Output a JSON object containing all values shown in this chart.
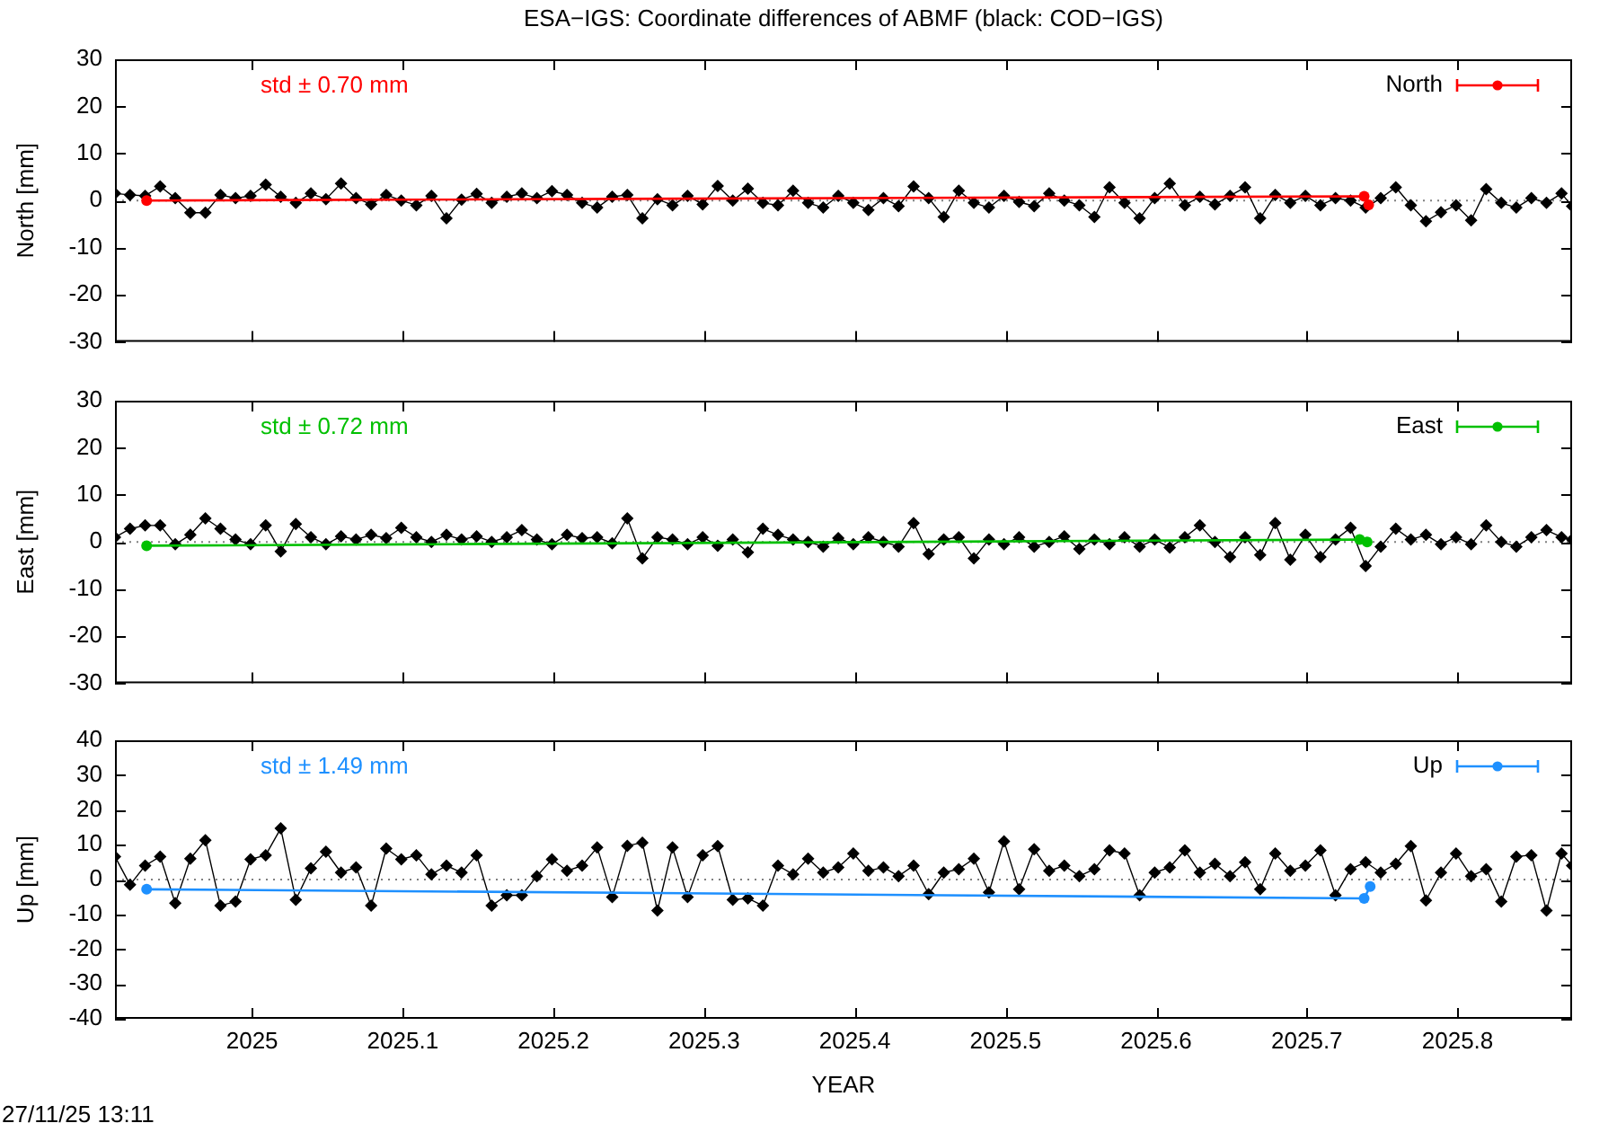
{
  "chart_data": [
    {
      "type": "line",
      "title": "ESA−IGS: Coordinate differences of ABMF (black: COD−IGS)",
      "ylabel": "North [mm]",
      "xlim": [
        2024.909,
        2025.876
      ],
      "xticks": [
        2025,
        2025.1,
        2025.2,
        2025.3,
        2025.4,
        2025.5,
        2025.6,
        2025.7,
        2025.8
      ],
      "ylim": [
        -30,
        30
      ],
      "yticks": [
        -30,
        -20,
        -10,
        0,
        10,
        20,
        30
      ],
      "tick_labels": "y",
      "legend": "top right",
      "marker": "diamond",
      "ref_lines": [
        {
          "axis": "y",
          "value": 0,
          "color": "#808080",
          "line_style": "dotted"
        }
      ],
      "annotations": [
        "std ± 0.70 mm"
      ],
      "series": [
        {
          "color": "#000000",
          "x": [
            2024.909,
            2024.919,
            2024.929,
            2024.939,
            2024.949,
            2024.959,
            2024.969,
            2024.979,
            2024.989,
            2024.999,
            2025.009,
            2025.019,
            2025.029,
            2025.039,
            2025.049,
            2025.059,
            2025.069,
            2025.079,
            2025.089,
            2025.099,
            2025.109,
            2025.119,
            2025.129,
            2025.139,
            2025.149,
            2025.159,
            2025.169,
            2025.179,
            2025.189,
            2025.199,
            2025.209,
            2025.219,
            2025.229,
            2025.239,
            2025.249,
            2025.259,
            2025.269,
            2025.279,
            2025.289,
            2025.299,
            2025.309,
            2025.319,
            2025.329,
            2025.339,
            2025.349,
            2025.359,
            2025.369,
            2025.379,
            2025.389,
            2025.399,
            2025.409,
            2025.419,
            2025.429,
            2025.439,
            2025.449,
            2025.459,
            2025.469,
            2025.479,
            2025.489,
            2025.499,
            2025.509,
            2025.519,
            2025.529,
            2025.539,
            2025.549,
            2025.559,
            2025.569,
            2025.579,
            2025.589,
            2025.599,
            2025.609,
            2025.619,
            2025.629,
            2025.639,
            2025.649,
            2025.659,
            2025.669,
            2025.679,
            2025.689,
            2025.699,
            2025.709,
            2025.719,
            2025.729,
            2025.739,
            2025.749,
            2025.759,
            2025.769,
            2025.779,
            2025.789,
            2025.799,
            2025.809,
            2025.819,
            2025.829,
            2025.839,
            2025.849,
            2025.859,
            2025.869,
            2025.876
          ],
          "values": [
            1.5,
            1.2,
            1.0,
            3.0,
            0.5,
            -2.6,
            -2.6,
            1.2,
            0.5,
            1.0,
            3.4,
            0.8,
            -0.5,
            1.5,
            0.3,
            3.6,
            0.5,
            -0.8,
            1.2,
            0.0,
            -1.0,
            1.0,
            -3.8,
            0.2,
            1.4,
            -0.5,
            0.8,
            1.5,
            0.5,
            2.0,
            1.2,
            -0.5,
            -1.5,
            0.8,
            1.2,
            -3.8,
            0.3,
            -1.0,
            1.0,
            -0.8,
            3.1,
            0.0,
            2.5,
            -0.5,
            -1.0,
            2.1,
            -0.5,
            -1.5,
            1.0,
            -0.5,
            -2.0,
            0.5,
            -1.2,
            3.0,
            0.5,
            -3.5,
            2.1,
            -0.5,
            -1.5,
            1.0,
            -0.3,
            -1.2,
            1.5,
            0.0,
            -1.0,
            -3.5,
            2.8,
            -0.5,
            -3.8,
            0.5,
            3.6,
            -1.0,
            0.8,
            -0.8,
            1.0,
            2.8,
            -3.8,
            1.2,
            -0.5,
            1.0,
            -1.0,
            0.5,
            0.0,
            -1.5,
            0.5,
            2.8,
            -1.0,
            -4.4,
            -2.5,
            -1.0,
            -4.2,
            2.4,
            -0.5,
            -1.5,
            0.5,
            -0.5,
            1.5,
            -1.2
          ]
        },
        {
          "name": "North",
          "color": "#ff0000",
          "marker": "circle",
          "x": [
            2024.93,
            2025.738,
            2025.741
          ],
          "values": [
            0.0,
            0.9,
            -0.9
          ]
        }
      ]
    },
    {
      "type": "line",
      "ylabel": "East [mm]",
      "xlim": [
        2024.909,
        2025.876
      ],
      "xticks": [
        2025,
        2025.1,
        2025.2,
        2025.3,
        2025.4,
        2025.5,
        2025.6,
        2025.7,
        2025.8
      ],
      "ylim": [
        -30,
        30
      ],
      "yticks": [
        -30,
        -20,
        -10,
        0,
        10,
        20,
        30
      ],
      "tick_labels": "y",
      "legend": "top right",
      "marker": "diamond",
      "ref_lines": [
        {
          "axis": "y",
          "value": 0,
          "color": "#808080",
          "line_style": "dotted"
        }
      ],
      "annotations": [
        "std ± 0.72 mm"
      ],
      "series": [
        {
          "color": "#000000",
          "x": [
            2024.909,
            2024.919,
            2024.929,
            2024.939,
            2024.949,
            2024.959,
            2024.969,
            2024.979,
            2024.989,
            2024.999,
            2025.009,
            2025.019,
            2025.029,
            2025.039,
            2025.049,
            2025.059,
            2025.069,
            2025.079,
            2025.089,
            2025.099,
            2025.109,
            2025.119,
            2025.129,
            2025.139,
            2025.149,
            2025.159,
            2025.169,
            2025.179,
            2025.189,
            2025.199,
            2025.209,
            2025.219,
            2025.229,
            2025.239,
            2025.249,
            2025.259,
            2025.269,
            2025.279,
            2025.289,
            2025.299,
            2025.309,
            2025.319,
            2025.329,
            2025.339,
            2025.349,
            2025.359,
            2025.369,
            2025.379,
            2025.389,
            2025.399,
            2025.409,
            2025.419,
            2025.429,
            2025.439,
            2025.449,
            2025.459,
            2025.469,
            2025.479,
            2025.489,
            2025.499,
            2025.509,
            2025.519,
            2025.529,
            2025.539,
            2025.549,
            2025.559,
            2025.569,
            2025.579,
            2025.589,
            2025.599,
            2025.609,
            2025.619,
            2025.629,
            2025.639,
            2025.649,
            2025.659,
            2025.669,
            2025.679,
            2025.689,
            2025.699,
            2025.709,
            2025.719,
            2025.729,
            2025.739,
            2025.749,
            2025.759,
            2025.769,
            2025.779,
            2025.789,
            2025.799,
            2025.809,
            2025.819,
            2025.829,
            2025.839,
            2025.849,
            2025.859,
            2025.869,
            2025.876
          ],
          "values": [
            1.0,
            2.8,
            3.5,
            3.5,
            -0.5,
            1.5,
            5.0,
            2.8,
            0.5,
            -0.5,
            3.5,
            -2.0,
            3.8,
            1.0,
            -0.5,
            1.2,
            0.5,
            1.5,
            0.8,
            3.0,
            1.0,
            0.0,
            1.5,
            0.5,
            1.2,
            0.0,
            1.0,
            2.5,
            0.5,
            -0.5,
            1.5,
            0.8,
            1.0,
            -0.3,
            5.0,
            -3.5,
            1.0,
            0.5,
            -0.5,
            1.0,
            -0.8,
            0.5,
            -2.2,
            2.8,
            1.5,
            0.5,
            0.0,
            -1.0,
            0.8,
            -0.5,
            1.0,
            0.0,
            -1.0,
            4.0,
            -2.6,
            0.5,
            1.0,
            -3.5,
            0.5,
            -0.5,
            1.0,
            -1.0,
            0.0,
            1.2,
            -1.5,
            0.5,
            -0.5,
            1.0,
            -1.0,
            0.5,
            -1.2,
            1.0,
            3.5,
            0.0,
            -3.2,
            1.0,
            -2.8,
            4.0,
            -3.8,
            1.5,
            -3.2,
            0.5,
            3.0,
            -5.1,
            -1.0,
            2.8,
            0.5,
            1.5,
            -0.5,
            1.0,
            -0.5,
            3.5,
            0.0,
            -1.0,
            1.0,
            2.5,
            1.0,
            0.5
          ]
        },
        {
          "name": "East",
          "color": "#00c000",
          "marker": "circle",
          "x": [
            2024.93,
            2025.735,
            2025.74
          ],
          "values": [
            -0.8,
            0.5,
            0.0
          ]
        }
      ]
    },
    {
      "type": "line",
      "xlabel": "YEAR",
      "ylabel": "Up [mm]",
      "xlim": [
        2024.909,
        2025.876
      ],
      "xticks": [
        2025,
        2025.1,
        2025.2,
        2025.3,
        2025.4,
        2025.5,
        2025.6,
        2025.7,
        2025.8
      ],
      "ylim": [
        -40,
        40
      ],
      "yticks": [
        -40,
        -30,
        -20,
        -10,
        0,
        10,
        20,
        30,
        40
      ],
      "legend": "top right",
      "marker": "diamond",
      "ref_lines": [
        {
          "axis": "y",
          "value": 0,
          "color": "#808080",
          "line_style": "dotted"
        }
      ],
      "annotations": [
        "std ± 1.49 mm",
        "27/11/25 13:11"
      ],
      "series": [
        {
          "color": "#000000",
          "x": [
            2024.909,
            2024.919,
            2024.929,
            2024.939,
            2024.949,
            2024.959,
            2024.969,
            2024.979,
            2024.989,
            2024.999,
            2025.009,
            2025.019,
            2025.029,
            2025.039,
            2025.049,
            2025.059,
            2025.069,
            2025.079,
            2025.089,
            2025.099,
            2025.109,
            2025.119,
            2025.129,
            2025.139,
            2025.149,
            2025.159,
            2025.169,
            2025.179,
            2025.189,
            2025.199,
            2025.209,
            2025.219,
            2025.229,
            2025.239,
            2025.249,
            2025.259,
            2025.269,
            2025.279,
            2025.289,
            2025.299,
            2025.309,
            2025.319,
            2025.329,
            2025.339,
            2025.349,
            2025.359,
            2025.369,
            2025.379,
            2025.389,
            2025.399,
            2025.409,
            2025.419,
            2025.429,
            2025.439,
            2025.449,
            2025.459,
            2025.469,
            2025.479,
            2025.489,
            2025.499,
            2025.509,
            2025.519,
            2025.529,
            2025.539,
            2025.549,
            2025.559,
            2025.569,
            2025.579,
            2025.589,
            2025.599,
            2025.609,
            2025.619,
            2025.629,
            2025.639,
            2025.649,
            2025.659,
            2025.669,
            2025.679,
            2025.689,
            2025.699,
            2025.709,
            2025.719,
            2025.729,
            2025.739,
            2025.749,
            2025.759,
            2025.769,
            2025.779,
            2025.789,
            2025.799,
            2025.809,
            2025.819,
            2025.829,
            2025.839,
            2025.849,
            2025.859,
            2025.869,
            2025.876
          ],
          "values": [
            6.6,
            -1.5,
            4.0,
            6.6,
            -6.8,
            6.0,
            11.3,
            -7.5,
            -6.3,
            5.8,
            7.0,
            14.7,
            -5.8,
            3.2,
            8.0,
            2.0,
            3.5,
            -7.5,
            8.9,
            5.8,
            7.0,
            1.5,
            4.0,
            2.0,
            7.0,
            -7.5,
            -4.5,
            -4.5,
            1.0,
            5.8,
            2.5,
            4.0,
            9.2,
            -5.0,
            9.7,
            10.6,
            -8.9,
            9.2,
            -5.0,
            7.0,
            9.6,
            -5.8,
            -5.4,
            -7.5,
            4.0,
            1.5,
            6.0,
            2.0,
            3.5,
            7.5,
            2.5,
            3.5,
            1.0,
            4.0,
            -4.2,
            2.0,
            3.0,
            6.0,
            -3.7,
            11.0,
            -2.8,
            8.7,
            2.5,
            4.0,
            1.0,
            3.0,
            8.4,
            7.5,
            -4.5,
            2.0,
            3.5,
            8.4,
            2.0,
            4.5,
            1.0,
            5.0,
            -2.8,
            7.5,
            2.5,
            4.0,
            8.4,
            -4.5,
            3.0,
            5.0,
            2.0,
            4.5,
            9.6,
            -6.0,
            2.0,
            7.5,
            1.0,
            3.0,
            -6.3,
            6.6,
            7.0,
            -8.9,
            7.5,
            4.0
          ]
        },
        {
          "name": "Up",
          "color": "#1e90ff",
          "marker": "circle",
          "x": [
            2024.93,
            2025.738,
            2025.742
          ],
          "values": [
            -2.8,
            -5.4,
            -2.0
          ]
        }
      ]
    }
  ]
}
